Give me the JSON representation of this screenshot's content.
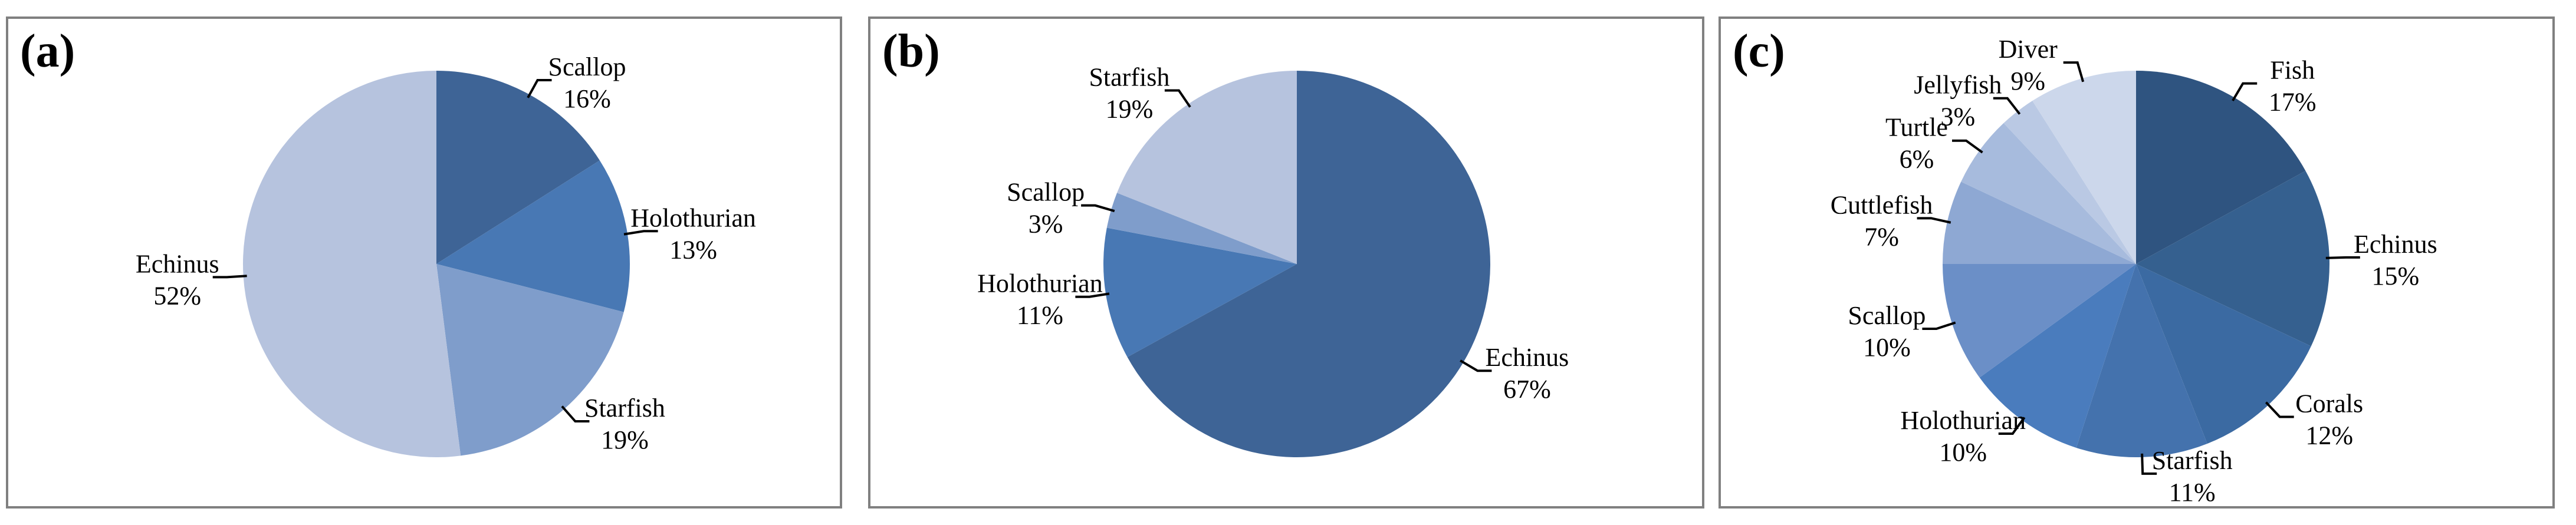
{
  "chart_data": [
    {
      "type": "pie",
      "panel_label": "(a)",
      "slices": [
        {
          "label": "Scallop",
          "percent_label": "16%",
          "value": 16,
          "color": "#3e6496"
        },
        {
          "label": "Holothurian",
          "percent_label": "13%",
          "value": 13,
          "color": "#4878b4"
        },
        {
          "label": "Starfish",
          "percent_label": "19%",
          "value": 19,
          "color": "#7f9dcb"
        },
        {
          "label": "Echinus",
          "percent_label": "52%",
          "value": 52,
          "color": "#b6c3de"
        }
      ]
    },
    {
      "type": "pie",
      "panel_label": "(b)",
      "slices": [
        {
          "label": "Echinus",
          "percent_label": "67%",
          "value": 67,
          "color": "#3e6496"
        },
        {
          "label": "Holothurian",
          "percent_label": "11%",
          "value": 11,
          "color": "#4878b4"
        },
        {
          "label": "Scallop",
          "percent_label": "3%",
          "value": 3,
          "color": "#7f9dcb"
        },
        {
          "label": "Starfish",
          "percent_label": "19%",
          "value": 19,
          "color": "#b6c3de"
        }
      ]
    },
    {
      "type": "pie",
      "panel_label": "(c)",
      "slices": [
        {
          "label": "Fish",
          "percent_label": "17%",
          "value": 17,
          "color": "#2f5480"
        },
        {
          "label": "Echinus",
          "percent_label": "15%",
          "value": 15,
          "color": "#35608f"
        },
        {
          "label": "Corals",
          "percent_label": "12%",
          "value": 12,
          "color": "#3b6aa2"
        },
        {
          "label": "Starfish",
          "percent_label": "11%",
          "value": 11,
          "color": "#4472ad"
        },
        {
          "label": "Holothurian",
          "percent_label": "10%",
          "value": 10,
          "color": "#4a7cbd"
        },
        {
          "label": "Scallop",
          "percent_label": "10%",
          "value": 10,
          "color": "#6b8fc7"
        },
        {
          "label": "Cuttlefish",
          "percent_label": "7%",
          "value": 7,
          "color": "#8ea8d3"
        },
        {
          "label": "Turtle",
          "percent_label": "6%",
          "value": 6,
          "color": "#a7bbdd"
        },
        {
          "label": "Jellyfish",
          "percent_label": "3%",
          "value": 3,
          "color": "#bac9e4"
        },
        {
          "label": "Diver",
          "percent_label": "9%",
          "value": 9,
          "color": "#ccd7eb"
        }
      ]
    }
  ]
}
